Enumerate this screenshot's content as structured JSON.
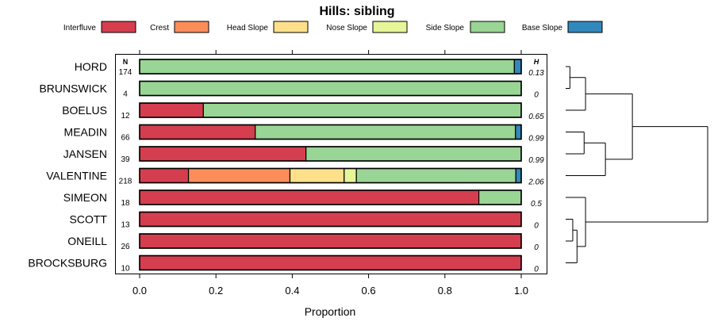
{
  "chart_data": {
    "type": "bar",
    "orientation": "horizontal",
    "stacked": true,
    "title": "Hills: sibling",
    "xlabel": "Proportion",
    "xlim": [
      0,
      1
    ],
    "xticks": [
      "0.0",
      "0.2",
      "0.4",
      "0.6",
      "0.8",
      "1.0"
    ],
    "n_header": "N",
    "h_header": "H",
    "legend": [
      {
        "name": "Interfluve",
        "color": "#d53e4f"
      },
      {
        "name": "Crest",
        "color": "#fc8d59"
      },
      {
        "name": "Head Slope",
        "color": "#fee08b"
      },
      {
        "name": "Nose Slope",
        "color": "#e6f598"
      },
      {
        "name": "Side Slope",
        "color": "#99d594"
      },
      {
        "name": "Base Slope",
        "color": "#3288bd"
      }
    ],
    "rows": [
      {
        "label": "HORD",
        "n": "174",
        "h": "0.13",
        "values": [
          0,
          0,
          0,
          0,
          0.982,
          0.018
        ]
      },
      {
        "label": "BRUNSWICK",
        "n": "4",
        "h": "0",
        "values": [
          0,
          0,
          0,
          0,
          1.0,
          0
        ]
      },
      {
        "label": "BOELUS",
        "n": "12",
        "h": "0.65",
        "values": [
          0.167,
          0,
          0,
          0,
          0.833,
          0
        ]
      },
      {
        "label": "MEADIN",
        "n": "66",
        "h": "0.99",
        "values": [
          0.303,
          0,
          0,
          0,
          0.682,
          0.015
        ]
      },
      {
        "label": "JANSEN",
        "n": "39",
        "h": "0.99",
        "values": [
          0.436,
          0,
          0,
          0,
          0.564,
          0
        ]
      },
      {
        "label": "VALENTINE",
        "n": "218",
        "h": "2.06",
        "values": [
          0.128,
          0.266,
          0.142,
          0.032,
          0.418,
          0.014
        ]
      },
      {
        "label": "SIMEON",
        "n": "18",
        "h": "0.5",
        "values": [
          0.889,
          0,
          0,
          0,
          0.111,
          0
        ]
      },
      {
        "label": "SCOTT",
        "n": "13",
        "h": "0",
        "values": [
          1.0,
          0,
          0,
          0,
          0,
          0
        ]
      },
      {
        "label": "ONEILL",
        "n": "26",
        "h": "0",
        "values": [
          1.0,
          0,
          0,
          0,
          0,
          0
        ]
      },
      {
        "label": "BROCKSBURG",
        "n": "10",
        "h": "0",
        "values": [
          1.0,
          0,
          0,
          0,
          0,
          0
        ]
      }
    ],
    "dendrogram": {
      "merges": [
        [
          "HORD",
          "BRUNSWICK",
          0.03
        ],
        [
          "{HORD,BRUNSWICK}",
          "BOELUS",
          0.14
        ],
        [
          "MEADIN",
          "JANSEN",
          0.13
        ],
        [
          "{MEADIN,JANSEN}",
          "VALENTINE",
          0.28
        ],
        [
          "{HORD..BOELUS}",
          "{MEADIN..VALENTINE}",
          0.47
        ],
        [
          "SCOTT",
          "ONEILL",
          0.05
        ],
        [
          "{SCOTT,ONEILL}",
          "BROCKSBURG",
          0.08
        ],
        [
          "SIMEON",
          "{SCOTT..BROCKSBURG}",
          0.14
        ],
        [
          "{HORD..VALENTINE}",
          "{SIMEON..BROCKSBURG}",
          1.0
        ]
      ]
    }
  }
}
